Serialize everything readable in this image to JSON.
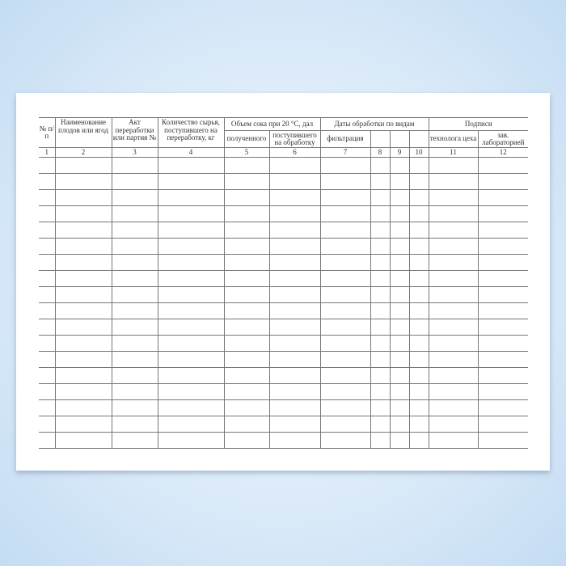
{
  "headers": {
    "col1": "№ п/п",
    "col2": "Наименование плодов или ягод",
    "col3": "Акт переработки или партия №",
    "col4": "Количество сырья, поступившего на переработку, кг",
    "group_volume": "Объем сока при 20 °С, дал",
    "col5": "полученного",
    "col6": "поступившего на обработку",
    "group_dates": "Даты обработки по видам",
    "col7": "фильтрация",
    "col8": "",
    "col9": "",
    "col10": "",
    "group_signatures": "Подписи",
    "col11": "технолога цеха",
    "col12": "зав. лабораторией"
  },
  "column_numbers": [
    "1",
    "2",
    "3",
    "4",
    "5",
    "6",
    "7",
    "8",
    "9",
    "10",
    "11",
    "12"
  ],
  "empty_rows": 18
}
